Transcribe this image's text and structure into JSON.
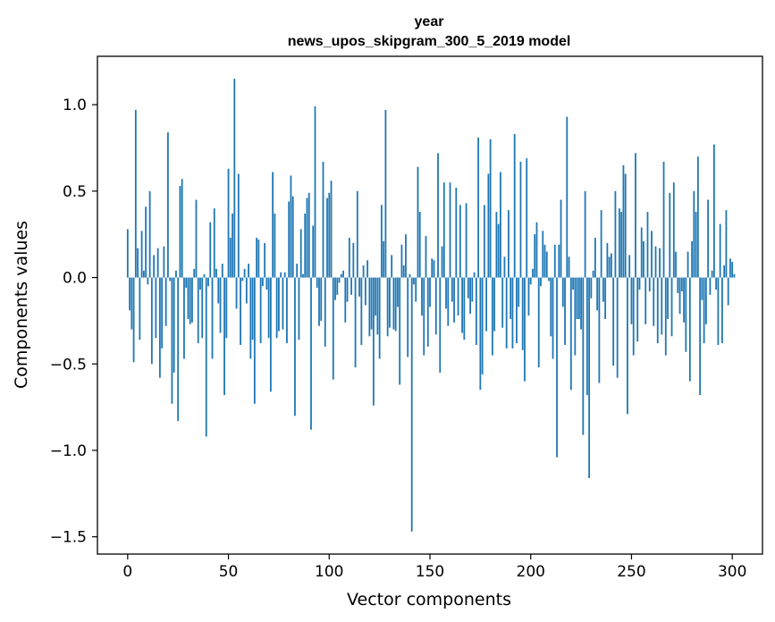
{
  "chart_data": {
    "type": "bar",
    "title": "year",
    "subtitle": "news_upos_skipgram_300_5_2019 model",
    "xlabel": "Vector components",
    "ylabel": "Components values",
    "xlim": [
      -15,
      315
    ],
    "ylim": [
      -1.6,
      1.28
    ],
    "xticks": [
      0,
      50,
      100,
      150,
      200,
      250,
      300
    ],
    "xtick_labels": [
      "0",
      "50",
      "100",
      "150",
      "200",
      "250",
      "300"
    ],
    "yticks": [
      -1.5,
      -1.0,
      -0.5,
      0.0,
      0.5,
      1.0
    ],
    "ytick_labels": [
      "−1.5",
      "−1.0",
      "−0.5",
      "0.0",
      "0.5",
      "1.0"
    ],
    "bar_color": "#1f77b4",
    "values": [
      0.28,
      -0.19,
      -0.3,
      -0.49,
      0.97,
      0.17,
      -0.36,
      0.27,
      0.04,
      0.41,
      -0.04,
      0.5,
      -0.5,
      0.13,
      -0.35,
      0.17,
      -0.58,
      -0.41,
      0.18,
      -0.28,
      0.84,
      -0.02,
      -0.73,
      -0.55,
      0.04,
      -0.83,
      0.53,
      0.57,
      -0.47,
      -0.06,
      -0.24,
      -0.27,
      -0.26,
      0.05,
      0.45,
      -0.38,
      -0.07,
      -0.35,
      0.02,
      -0.92,
      -0.05,
      0.32,
      -0.47,
      0.4,
      0.05,
      -0.15,
      -0.32,
      0.08,
      -0.68,
      -0.35,
      0.63,
      0.23,
      0.37,
      1.15,
      -0.18,
      0.6,
      -0.39,
      -0.02,
      0.05,
      -0.15,
      0.08,
      -0.47,
      -0.36,
      -0.73,
      0.23,
      0.22,
      -0.38,
      -0.05,
      0.2,
      -0.07,
      -0.35,
      -0.66,
      0.61,
      0.37,
      -0.35,
      -0.31,
      0.03,
      -0.3,
      0.03,
      -0.38,
      0.44,
      0.59,
      0.47,
      -0.8,
      0.08,
      -0.36,
      0.28,
      0.02,
      0.37,
      0.46,
      0.49,
      -0.88,
      0.3,
      0.99,
      -0.06,
      -0.28,
      -0.25,
      0.67,
      -0.4,
      0.46,
      0.49,
      0.56,
      -0.59,
      -0.13,
      -0.1,
      -0.03,
      0.02,
      0.04,
      -0.26,
      -0.14,
      0.23,
      -0.1,
      0.2,
      -0.52,
      0.5,
      -0.11,
      -0.39,
      0.07,
      -0.16,
      0.1,
      -0.34,
      -0.3,
      -0.74,
      -0.22,
      -0.33,
      -0.47,
      0.42,
      0.21,
      0.97,
      -0.34,
      -0.29,
      0.13,
      -0.3,
      -0.31,
      -0.17,
      -0.62,
      0.19,
      0.07,
      0.25,
      -0.46,
      0.02,
      -1.47,
      -0.04,
      -0.14,
      0.64,
      0.38,
      -0.22,
      -0.45,
      0.24,
      -0.4,
      -0.17,
      0.11,
      0.1,
      -0.33,
      0.72,
      -0.55,
      0.18,
      0.55,
      -0.18,
      -0.28,
      0.55,
      -0.14,
      -0.26,
      0.52,
      -0.22,
      0.42,
      -0.32,
      -0.36,
      0.43,
      -0.12,
      -0.21,
      -0.14,
      0.03,
      -0.39,
      0.81,
      -0.65,
      -0.56,
      0.42,
      -0.31,
      0.6,
      0.8,
      -0.45,
      -0.31,
      0.38,
      0.31,
      0.61,
      -0.29,
      0.12,
      -0.41,
      0.39,
      -0.24,
      -0.41,
      0.83,
      -0.38,
      -0.17,
      0.67,
      -0.42,
      -0.6,
      0.69,
      -0.22,
      -0.04,
      0.05,
      0.25,
      0.32,
      -0.52,
      -0.05,
      0.27,
      0.19,
      0.15,
      -0.02,
      -0.34,
      -0.47,
      0.19,
      -1.04,
      0.19,
      0.45,
      -0.17,
      -0.39,
      0.93,
      0.12,
      -0.65,
      -0.07,
      -0.45,
      -0.24,
      -0.24,
      -0.3,
      -0.91,
      0.5,
      -0.68,
      -1.16,
      -0.12,
      0.04,
      0.23,
      -0.19,
      -0.61,
      0.39,
      -0.14,
      -0.24,
      0.2,
      0.12,
      0.14,
      -0.51,
      0.5,
      -0.58,
      0.4,
      0.38,
      0.65,
      0.6,
      -0.79,
      0.13,
      -0.27,
      -0.45,
      0.72,
      -0.37,
      -0.07,
      0.29,
      0.21,
      -0.27,
      0.38,
      -0.08,
      0.27,
      -0.28,
      0.18,
      -0.38,
      0.17,
      -0.33,
      0.67,
      -0.45,
      -0.24,
      0.49,
      -0.34,
      0.55,
      0.15,
      -0.09,
      -0.21,
      -0.08,
      -0.26,
      -0.43,
      0.15,
      -0.6,
      0.21,
      0.5,
      0.38,
      0.7,
      -0.68,
      -0.13,
      -0.38,
      -0.27,
      0.45,
      -0.1,
      0.04,
      0.77,
      -0.07,
      -0.39,
      0.31,
      -0.38,
      0.07,
      0.39,
      -0.16,
      0.11,
      0.09,
      0.02
    ]
  }
}
